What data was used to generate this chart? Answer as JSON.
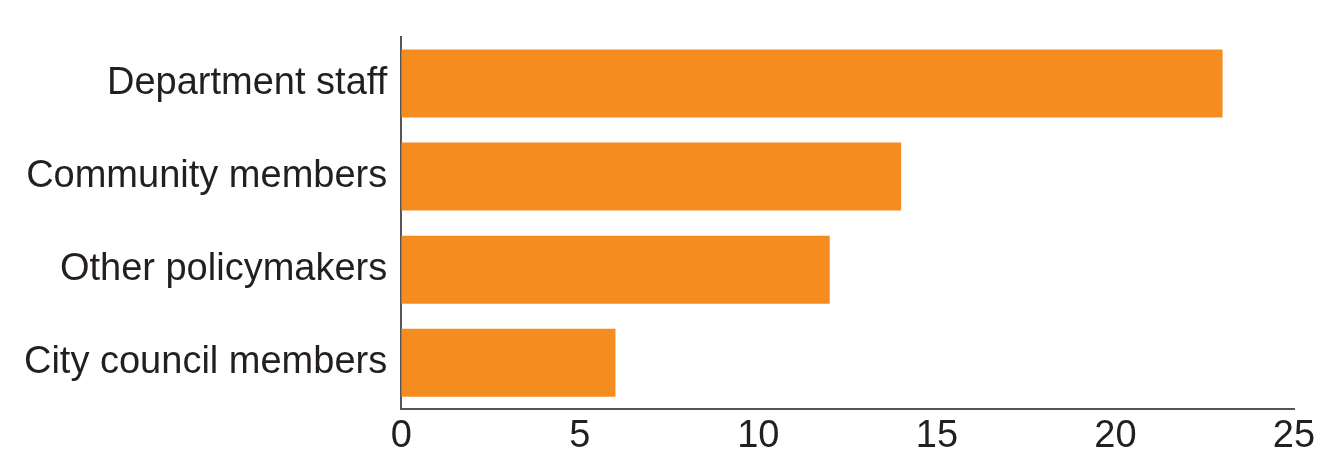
{
  "chart_data": {
    "type": "bar",
    "orientation": "horizontal",
    "categories": [
      "Department staff",
      "Community members",
      "Other policymakers",
      "City council members"
    ],
    "values": [
      23,
      14,
      12,
      6
    ],
    "color": "#f58c1f",
    "xlim": [
      0,
      25
    ],
    "xticks": [
      0,
      5,
      10,
      15,
      20,
      25
    ],
    "grid": false
  }
}
